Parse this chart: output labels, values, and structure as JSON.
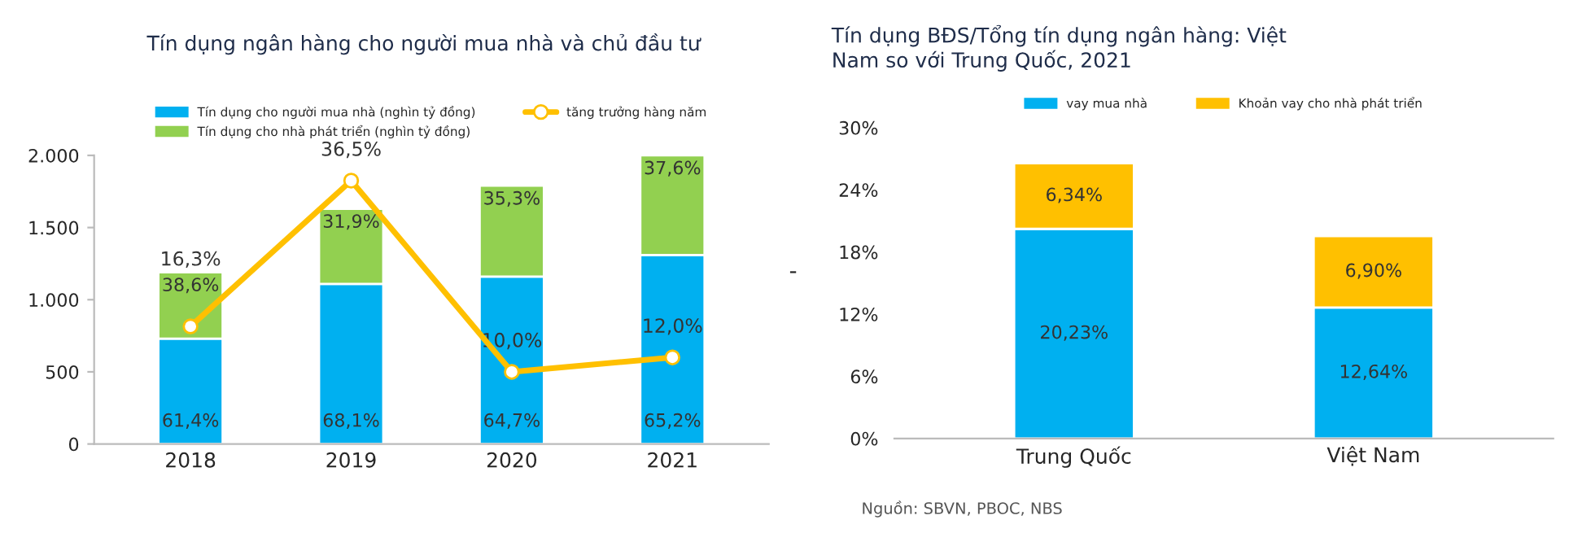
{
  "chart_data": [
    {
      "type": "bar",
      "title": "Tín dụng ngân hàng cho người mua nhà và chủ đầu tư",
      "stacked": true,
      "categories": [
        "2018",
        "2019",
        "2020",
        "2021"
      ],
      "series": [
        {
          "name": "Tín dụng cho người mua nhà (nghìn tỷ đồng)",
          "color": "#00b0f0",
          "values": [
            730,
            1110,
            1160,
            1310
          ]
        },
        {
          "name": "Tín dụng cho nhà phát triển (nghìn tỷ đồng)",
          "color": "#92d050",
          "values": [
            460,
            520,
            630,
            690
          ]
        },
        {
          "name": "tăng trưởng hàng năm",
          "type": "line",
          "axis": "y2",
          "color": "#ffc000",
          "values": [
            16.3,
            36.5,
            10.0,
            12.0
          ],
          "value_labels": [
            "16,3%",
            "36,5%",
            "10,0%",
            "12,0%"
          ]
        }
      ],
      "marker": "circle",
      "ylim": [
        0,
        2000
      ],
      "yticks": [
        0,
        500,
        {
          "value": 1000,
          "label": "1.000"
        },
        {
          "value": 1500,
          "label": "1.500"
        },
        {
          "value": 2000,
          "label": "2.000"
        }
      ],
      "y2lim": [
        0,
        40
      ],
      "tick_labels": "xy",
      "legend": "top",
      "annotations": [
        {
          "text": "61,4%",
          "x": "2018",
          "y": 0
        },
        {
          "text": "68,1%",
          "x": "2019",
          "y": 0
        },
        {
          "text": "64,7%",
          "x": "2020",
          "y": 0
        },
        {
          "text": "65,2%",
          "x": "2021",
          "y": 0
        },
        {
          "text": "38,6%",
          "x": "2018",
          "y": 1190
        },
        {
          "text": "31,9%",
          "x": "2019",
          "y": 1630
        },
        {
          "text": "35,3%",
          "x": "2020",
          "y": 1790
        },
        {
          "text": "37,6%",
          "x": "2021",
          "y": 2000
        }
      ]
    },
    {
      "type": "bar",
      "title": "Tín dụng BĐS/Tổng tín dụng ngân hàng: Việt\nNam so với Trung Quốc, 2021",
      "stacked": true,
      "categories": [
        "Trung Quốc",
        "Việt Nam"
      ],
      "ylabel": "-",
      "series": [
        {
          "name": "vay mua nhà",
          "color": "#00b0f0",
          "values": [
            20.23,
            12.64
          ],
          "value_labels": [
            "20,23%",
            "12,64%"
          ]
        },
        {
          "name": "Khoản vay cho nhà phát triển",
          "color": "#ffc000",
          "values": [
            6.34,
            6.9
          ],
          "value_labels": [
            "6,34%",
            "6,90%"
          ]
        }
      ],
      "ylim": [
        0,
        30
      ],
      "yticks": [
        {
          "value": 0,
          "label": "0%"
        },
        {
          "value": 6,
          "label": "6%"
        },
        {
          "value": 12,
          "label": "12%"
        },
        {
          "value": 18,
          "label": "18%"
        },
        {
          "value": 24,
          "label": "24%"
        },
        {
          "value": 30,
          "label": "30%"
        }
      ],
      "legend": "top",
      "annotations": [
        "Nguồn: SBVN, PBOC, NBS"
      ]
    }
  ]
}
